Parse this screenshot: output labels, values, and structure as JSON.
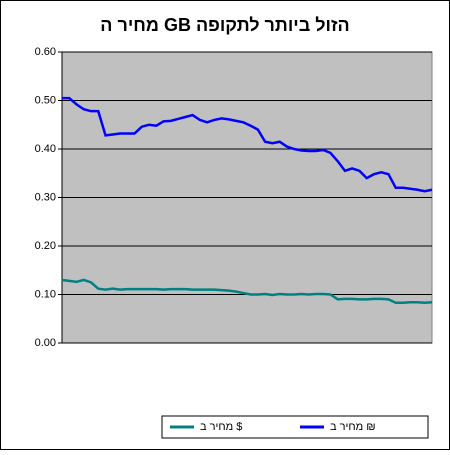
{
  "chart_data": {
    "type": "line",
    "title": "מחיר ה GB הזול ביותר לתקופה",
    "categories": [
      null,
      null,
      null,
      null,
      null,
      null,
      null,
      null,
      null,
      null,
      null,
      null,
      null,
      null,
      null,
      null,
      null,
      null,
      null,
      null,
      null,
      null,
      null,
      null,
      null,
      null,
      null,
      null,
      null,
      null,
      null,
      null,
      null,
      null,
      null,
      null,
      null,
      null,
      null,
      null,
      null,
      null,
      null,
      null,
      null,
      null,
      null,
      null,
      null,
      null,
      null,
      null
    ],
    "series": [
      {
        "name": "מחיר ב $",
        "color": "#008080",
        "values": [
          0.13,
          0.128,
          0.126,
          0.13,
          0.125,
          0.112,
          0.11,
          0.112,
          0.11,
          0.111,
          0.111,
          0.111,
          0.111,
          0.111,
          0.11,
          0.111,
          0.111,
          0.111,
          0.11,
          0.11,
          0.11,
          0.11,
          0.109,
          0.108,
          0.106,
          0.103,
          0.1,
          0.1,
          0.101,
          0.099,
          0.101,
          0.1,
          0.1,
          0.101,
          0.1,
          0.101,
          0.101,
          0.1,
          0.09,
          0.091,
          0.091,
          0.09,
          0.09,
          0.091,
          0.091,
          0.09,
          0.083,
          0.083,
          0.084,
          0.084,
          0.083,
          0.084
        ]
      },
      {
        "name": "מחיר ב ₪",
        "color": "#0000ff",
        "values": [
          0.505,
          0.505,
          0.492,
          0.482,
          0.478,
          0.478,
          0.428,
          0.43,
          0.432,
          0.432,
          0.432,
          0.446,
          0.45,
          0.448,
          0.457,
          0.458,
          0.462,
          0.466,
          0.47,
          0.46,
          0.455,
          0.46,
          0.463,
          0.461,
          0.458,
          0.455,
          0.448,
          0.44,
          0.415,
          0.412,
          0.415,
          0.405,
          0.4,
          0.397,
          0.396,
          0.396,
          0.398,
          0.392,
          0.375,
          0.355,
          0.36,
          0.355,
          0.34,
          0.348,
          0.352,
          0.348,
          0.32,
          0.32,
          0.318,
          0.316,
          0.313,
          0.316
        ]
      }
    ],
    "ylim": [
      0,
      0.6
    ],
    "yticks": [
      {
        "value": 0,
        "label": "0.00"
      },
      {
        "value": 0.1,
        "label": "0.10"
      },
      {
        "value": 0.2,
        "label": "0.20"
      },
      {
        "value": 0.3,
        "label": "0.30"
      },
      {
        "value": 0.4,
        "label": "0.40"
      },
      {
        "value": 0.5,
        "label": "0.50"
      },
      {
        "value": 0.6,
        "label": "0.60"
      }
    ],
    "grid": true,
    "plot_background": "#c0c0c0",
    "legend": "bottom"
  }
}
